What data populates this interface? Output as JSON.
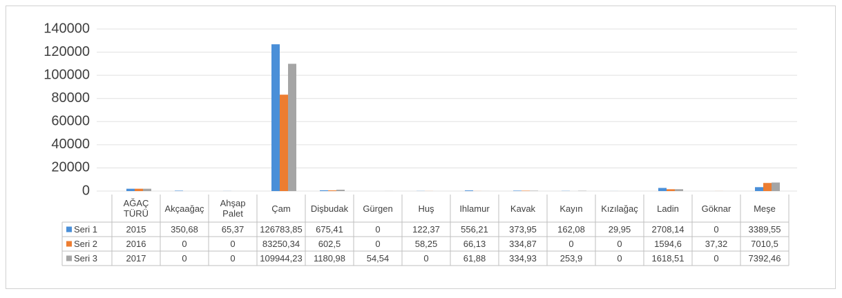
{
  "chart_data": {
    "type": "bar",
    "categories": [
      "AĞAÇ TÜRÜ",
      "Akçaağaç",
      "Ahşap Palet",
      "Çam",
      "Dişbudak",
      "Gürgen",
      "Huş",
      "Ihlamur",
      "Kavak",
      "Kayın",
      "Kızılağaç",
      "Ladin",
      "Göknar",
      "Meşe"
    ],
    "series": [
      {
        "name": "Seri 1",
        "color": "#4a8fd8",
        "values": [
          2015,
          350.68,
          65.37,
          126783.85,
          675.41,
          0,
          122.37,
          556.21,
          373.95,
          162.08,
          29.95,
          2708.14,
          0,
          3389.55
        ],
        "value_labels": [
          "2015",
          "350,68",
          "65,37",
          "126783,85",
          "675,41",
          "0",
          "122,37",
          "556,21",
          "373,95",
          "162,08",
          "29,95",
          "2708,14",
          "0",
          "3389,55"
        ]
      },
      {
        "name": "Seri 2",
        "color": "#ed7d31",
        "values": [
          2016,
          0,
          0,
          83250.34,
          602.5,
          0,
          58.25,
          66.13,
          334.87,
          0,
          0,
          1594.6,
          37.32,
          7010.5
        ],
        "value_labels": [
          "2016",
          "0",
          "0",
          "83250,34",
          "602,5",
          "0",
          "58,25",
          "66,13",
          "334,87",
          "0",
          "0",
          "1594,6",
          "37,32",
          "7010,5"
        ]
      },
      {
        "name": "Seri 3",
        "color": "#a5a5a5",
        "values": [
          2017,
          0,
          0,
          109944.23,
          1180.98,
          54.54,
          0,
          61.88,
          334.93,
          253.9,
          0,
          1618.51,
          0,
          7392.46
        ],
        "value_labels": [
          "2017",
          "0",
          "0",
          "109944,23",
          "1180,98",
          "54,54",
          "0",
          "61,88",
          "334,93",
          "253,9",
          "0",
          "1618,51",
          "0",
          "7392,46"
        ]
      }
    ],
    "ylim": [
      0,
      140000
    ],
    "yticks": [
      0,
      20000,
      40000,
      60000,
      80000,
      100000,
      120000,
      140000
    ],
    "grid": true
  }
}
